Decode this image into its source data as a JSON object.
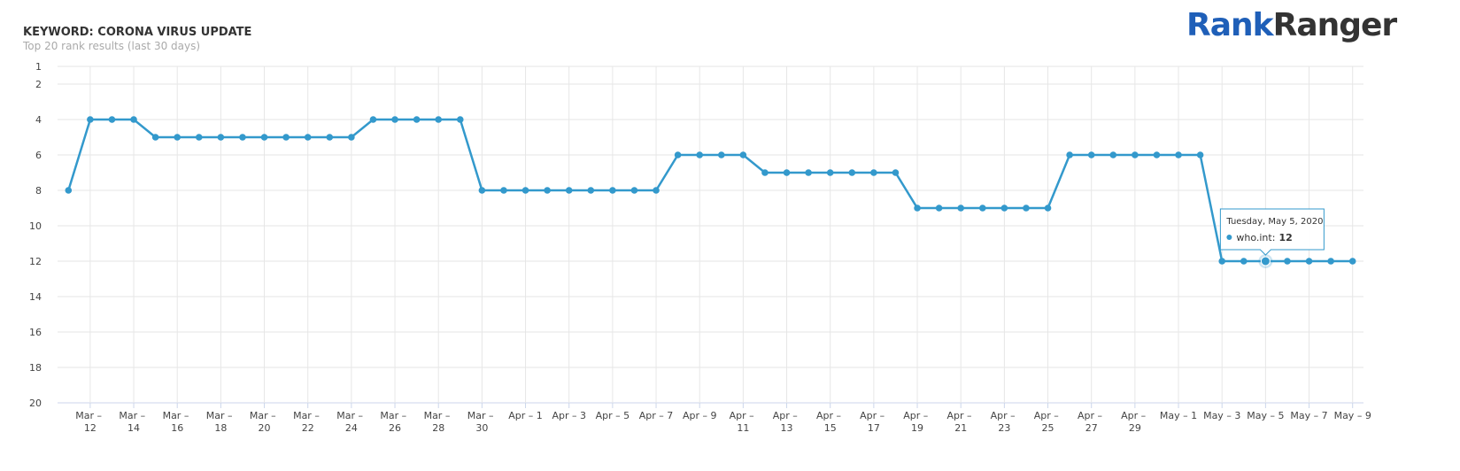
{
  "chart_data": {
    "type": "line",
    "title": "KEYWORD: CORONA VIRUS UPDATE",
    "subtitle": "Top 20 rank results (last 30 days)",
    "logo": [
      "Rank",
      "Ranger"
    ],
    "categories": [
      null,
      "Mar – 12",
      null,
      "Mar – 14",
      null,
      "Mar – 16",
      null,
      "Mar – 18",
      null,
      "Mar – 20",
      null,
      "Mar – 22",
      null,
      "Mar – 24",
      null,
      "Mar – 26",
      null,
      "Mar – 28",
      null,
      "Mar – 30",
      null,
      "Apr – 1",
      null,
      "Apr – 3",
      null,
      "Apr – 5",
      null,
      "Apr – 7",
      null,
      "Apr – 9",
      null,
      "Apr – 11",
      null,
      "Apr – 13",
      null,
      "Apr – 15",
      null,
      "Apr – 17",
      null,
      "Apr – 19",
      null,
      "Apr – 21",
      null,
      "Apr – 23",
      null,
      "Apr – 25",
      null,
      "Apr – 27",
      null,
      "Apr – 29",
      null,
      "May – 1",
      null,
      "May – 3",
      null,
      "May – 5",
      null,
      "May – 7",
      null,
      "May – 9"
    ],
    "series": [
      {
        "name": "who.int",
        "color": "#3399cc",
        "values": [
          8,
          4,
          4,
          4,
          5,
          5,
          5,
          5,
          5,
          5,
          5,
          5,
          5,
          5,
          4,
          4,
          4,
          4,
          4,
          8,
          8,
          8,
          8,
          8,
          8,
          8,
          8,
          8,
          6,
          6,
          6,
          6,
          7,
          7,
          7,
          7,
          7,
          7,
          7,
          9,
          9,
          9,
          9,
          9,
          9,
          9,
          6,
          6,
          6,
          6,
          6,
          6,
          6,
          12,
          12,
          12,
          12,
          12,
          12,
          12
        ]
      }
    ],
    "ylim": [
      1,
      20
    ],
    "y_inverted": true,
    "yticks": [
      1,
      2,
      4,
      6,
      8,
      10,
      12,
      14,
      16,
      18,
      20
    ],
    "grid": true,
    "tooltip": {
      "date": "Tuesday, May 5, 2020",
      "label": "who.int:",
      "index": 55
    }
  }
}
